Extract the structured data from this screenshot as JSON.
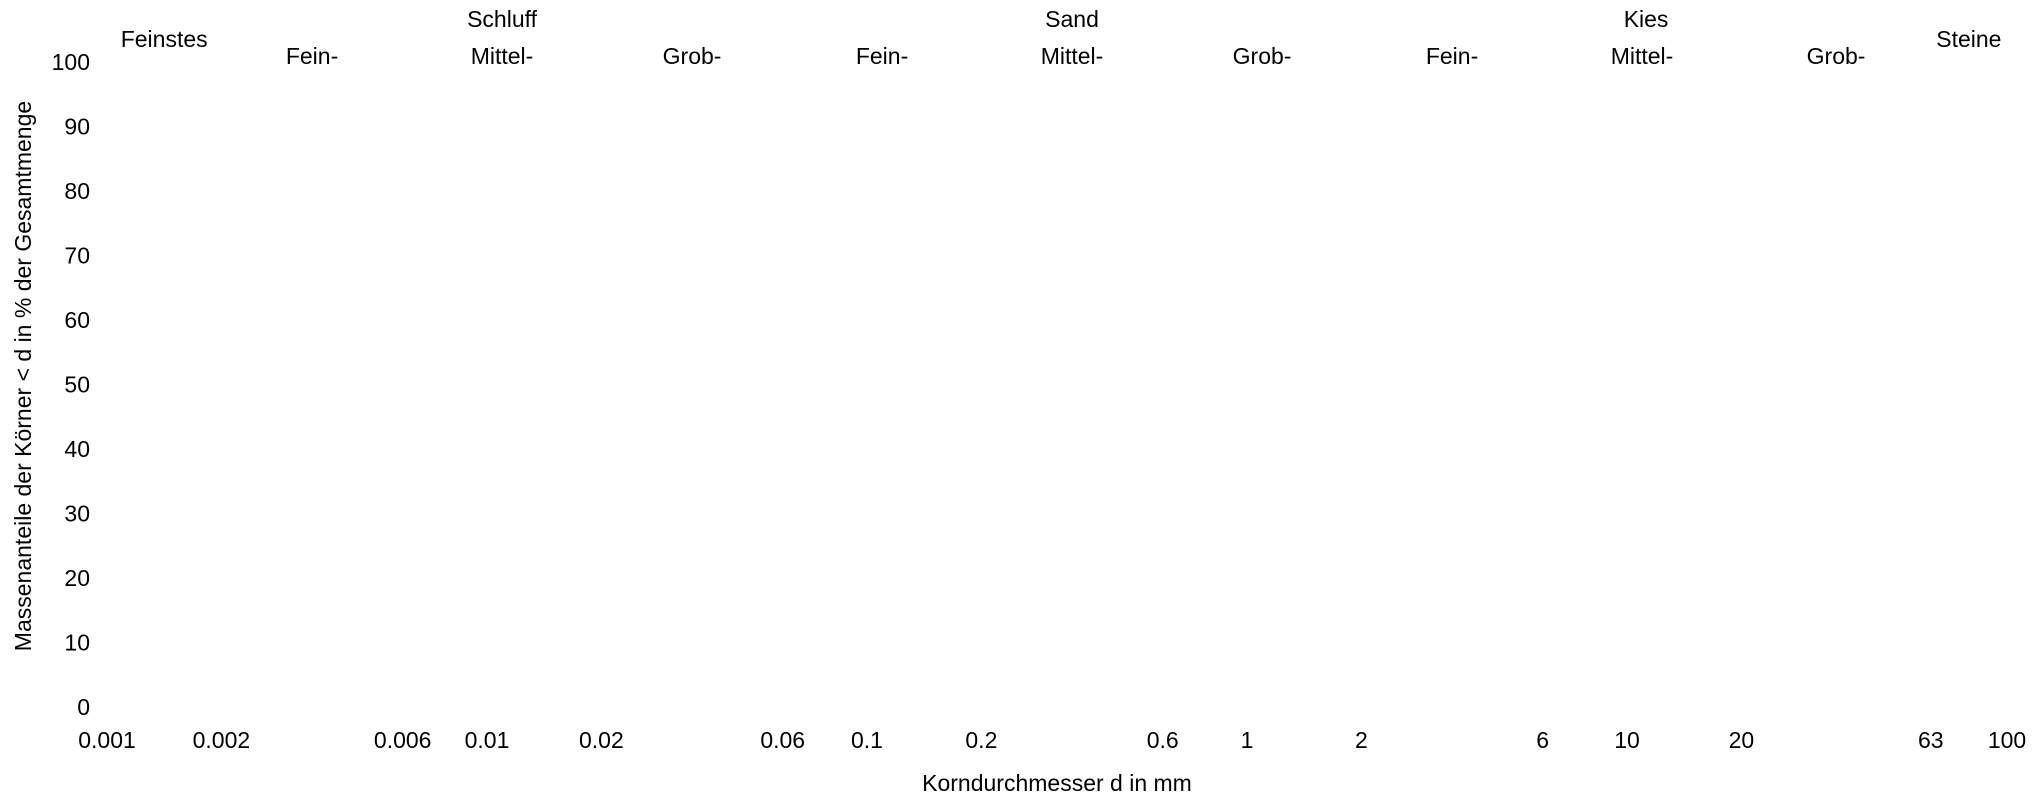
{
  "chart_data": {
    "type": "scatter",
    "title": "",
    "xlabel": "Korndurchmesser d in mm",
    "ylabel": "Massenanteile der Körner < d in % der Gesamtmenge",
    "x_scale": "log",
    "xlim": [
      0.001,
      100
    ],
    "ylim": [
      0,
      100
    ],
    "grid": false,
    "x_ticks": [
      "0.001",
      "0.002",
      "0.006",
      "0.01",
      "0.02",
      "0.06",
      "0.1",
      "0.2",
      "0.6",
      "1",
      "2",
      "6",
      "10",
      "20",
      "63",
      "100"
    ],
    "y_ticks": [
      "0",
      "10",
      "20",
      "30",
      "40",
      "50",
      "60",
      "70",
      "80",
      "90",
      "100"
    ],
    "series": [],
    "soil_classes": {
      "main": [
        {
          "label": "Feinstes",
          "from": 0.001,
          "to": 0.002
        },
        {
          "label": "Schluff",
          "from": 0.002,
          "to": 0.06
        },
        {
          "label": "Sand",
          "from": 0.06,
          "to": 2
        },
        {
          "label": "Kies",
          "from": 2,
          "to": 63
        },
        {
          "label": "Steine",
          "from": 63,
          "to": 100
        }
      ],
      "sub": [
        {
          "label": "Fein-",
          "from": 0.002,
          "to": 0.006
        },
        {
          "label": "Mittel-",
          "from": 0.006,
          "to": 0.02
        },
        {
          "label": "Grob-",
          "from": 0.02,
          "to": 0.06
        },
        {
          "label": "Fein-",
          "from": 0.06,
          "to": 0.2
        },
        {
          "label": "Mittel-",
          "from": 0.2,
          "to": 0.6
        },
        {
          "label": "Grob-",
          "from": 0.6,
          "to": 2
        },
        {
          "label": "Fein-",
          "from": 2,
          "to": 6
        },
        {
          "label": "Mittel-",
          "from": 6,
          "to": 20
        },
        {
          "label": "Grob-",
          "from": 20,
          "to": 63
        }
      ]
    }
  }
}
